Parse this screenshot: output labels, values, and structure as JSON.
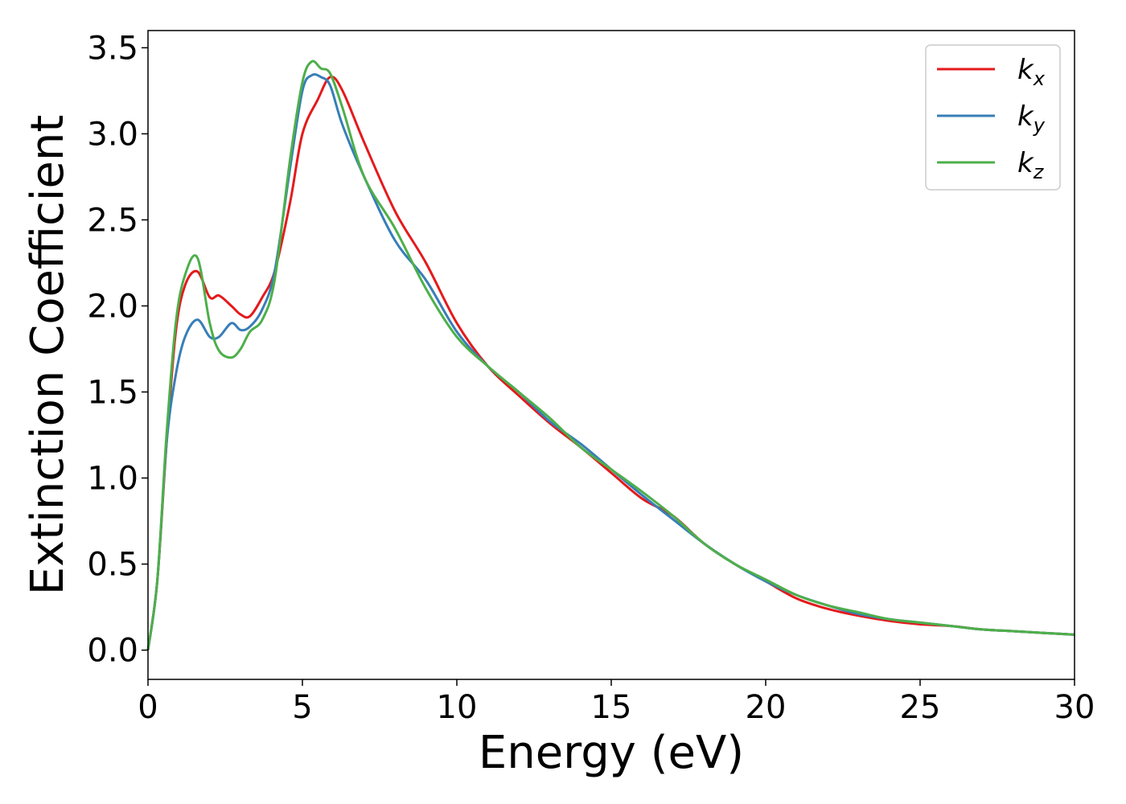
{
  "chart_data": {
    "type": "line",
    "xlabel": "Energy (eV)",
    "ylabel": "Extinction Coefficient",
    "xlim": [
      0,
      30
    ],
    "ylim": [
      -0.17,
      3.6
    ],
    "xticks": [
      "0",
      "5",
      "10",
      "15",
      "20",
      "25",
      "30"
    ],
    "yticks": [
      "0.0",
      "0.5",
      "1.0",
      "1.5",
      "2.0",
      "2.5",
      "3.0",
      "3.5"
    ],
    "grid": false,
    "legend_position": "top-right",
    "series": [
      {
        "name": "k_x",
        "base": "k",
        "sub": "x",
        "color": "#e41a1c",
        "x": [
          0,
          0.3,
          0.6,
          0.9,
          1.2,
          1.6,
          2.0,
          2.3,
          2.7,
          3.0,
          3.3,
          3.7,
          4.1,
          4.6,
          5.0,
          5.5,
          5.9,
          6.3,
          7.0,
          8.0,
          9.0,
          10.0,
          11.0,
          12.0,
          13.0,
          14.0,
          15.0,
          16.0,
          17.0,
          18.0,
          19.0,
          20.0,
          21.0,
          22.0,
          23.0,
          24.0,
          25.0,
          26.0,
          27.0,
          28.0,
          29.0,
          30.0
        ],
        "y": [
          0.0,
          0.4,
          1.2,
          1.85,
          2.12,
          2.2,
          2.05,
          2.06,
          2.0,
          1.95,
          1.94,
          2.05,
          2.2,
          2.6,
          3.0,
          3.2,
          3.33,
          3.25,
          2.95,
          2.55,
          2.25,
          1.9,
          1.65,
          1.48,
          1.32,
          1.18,
          1.03,
          0.88,
          0.78,
          0.62,
          0.5,
          0.4,
          0.3,
          0.24,
          0.2,
          0.17,
          0.15,
          0.14,
          0.12,
          0.11,
          0.1,
          0.09
        ]
      },
      {
        "name": "k_y",
        "base": "k",
        "sub": "y",
        "color": "#377eb8",
        "x": [
          0,
          0.3,
          0.6,
          0.9,
          1.2,
          1.6,
          2.0,
          2.3,
          2.7,
          3.0,
          3.3,
          3.7,
          4.1,
          4.6,
          5.0,
          5.3,
          5.6,
          5.9,
          6.3,
          7.0,
          8.0,
          9.0,
          10.0,
          11.0,
          12.0,
          13.0,
          14.0,
          15.0,
          16.0,
          17.0,
          18.0,
          19.0,
          20.0,
          21.0,
          22.0,
          23.0,
          24.0,
          25.0,
          26.0,
          27.0,
          28.0,
          29.0,
          30.0
        ],
        "y": [
          0.0,
          0.4,
          1.2,
          1.6,
          1.82,
          1.92,
          1.82,
          1.82,
          1.9,
          1.86,
          1.88,
          1.98,
          2.2,
          2.8,
          3.25,
          3.34,
          3.33,
          3.28,
          3.05,
          2.75,
          2.38,
          2.15,
          1.85,
          1.65,
          1.5,
          1.33,
          1.2,
          1.05,
          0.9,
          0.76,
          0.62,
          0.5,
          0.4,
          0.32,
          0.26,
          0.21,
          0.18,
          0.16,
          0.14,
          0.12,
          0.11,
          0.1,
          0.09
        ]
      },
      {
        "name": "k_z",
        "base": "k",
        "sub": "z",
        "color": "#4daf4a",
        "x": [
          0,
          0.3,
          0.6,
          0.9,
          1.2,
          1.6,
          2.0,
          2.3,
          2.7,
          3.0,
          3.3,
          3.7,
          4.1,
          4.6,
          5.0,
          5.3,
          5.6,
          5.9,
          6.3,
          7.0,
          8.0,
          9.0,
          10.0,
          11.0,
          12.0,
          13.0,
          14.0,
          15.0,
          16.0,
          17.0,
          18.0,
          19.0,
          20.0,
          21.0,
          22.0,
          23.0,
          24.0,
          25.0,
          26.0,
          27.0,
          28.0,
          29.0,
          30.0
        ],
        "y": [
          0.0,
          0.4,
          1.25,
          1.9,
          2.18,
          2.28,
          1.9,
          1.74,
          1.7,
          1.75,
          1.85,
          1.92,
          2.15,
          2.85,
          3.3,
          3.42,
          3.38,
          3.35,
          3.15,
          2.75,
          2.45,
          2.1,
          1.82,
          1.65,
          1.5,
          1.35,
          1.18,
          1.05,
          0.92,
          0.78,
          0.62,
          0.5,
          0.41,
          0.32,
          0.26,
          0.22,
          0.18,
          0.16,
          0.14,
          0.12,
          0.11,
          0.1,
          0.09
        ]
      }
    ]
  }
}
